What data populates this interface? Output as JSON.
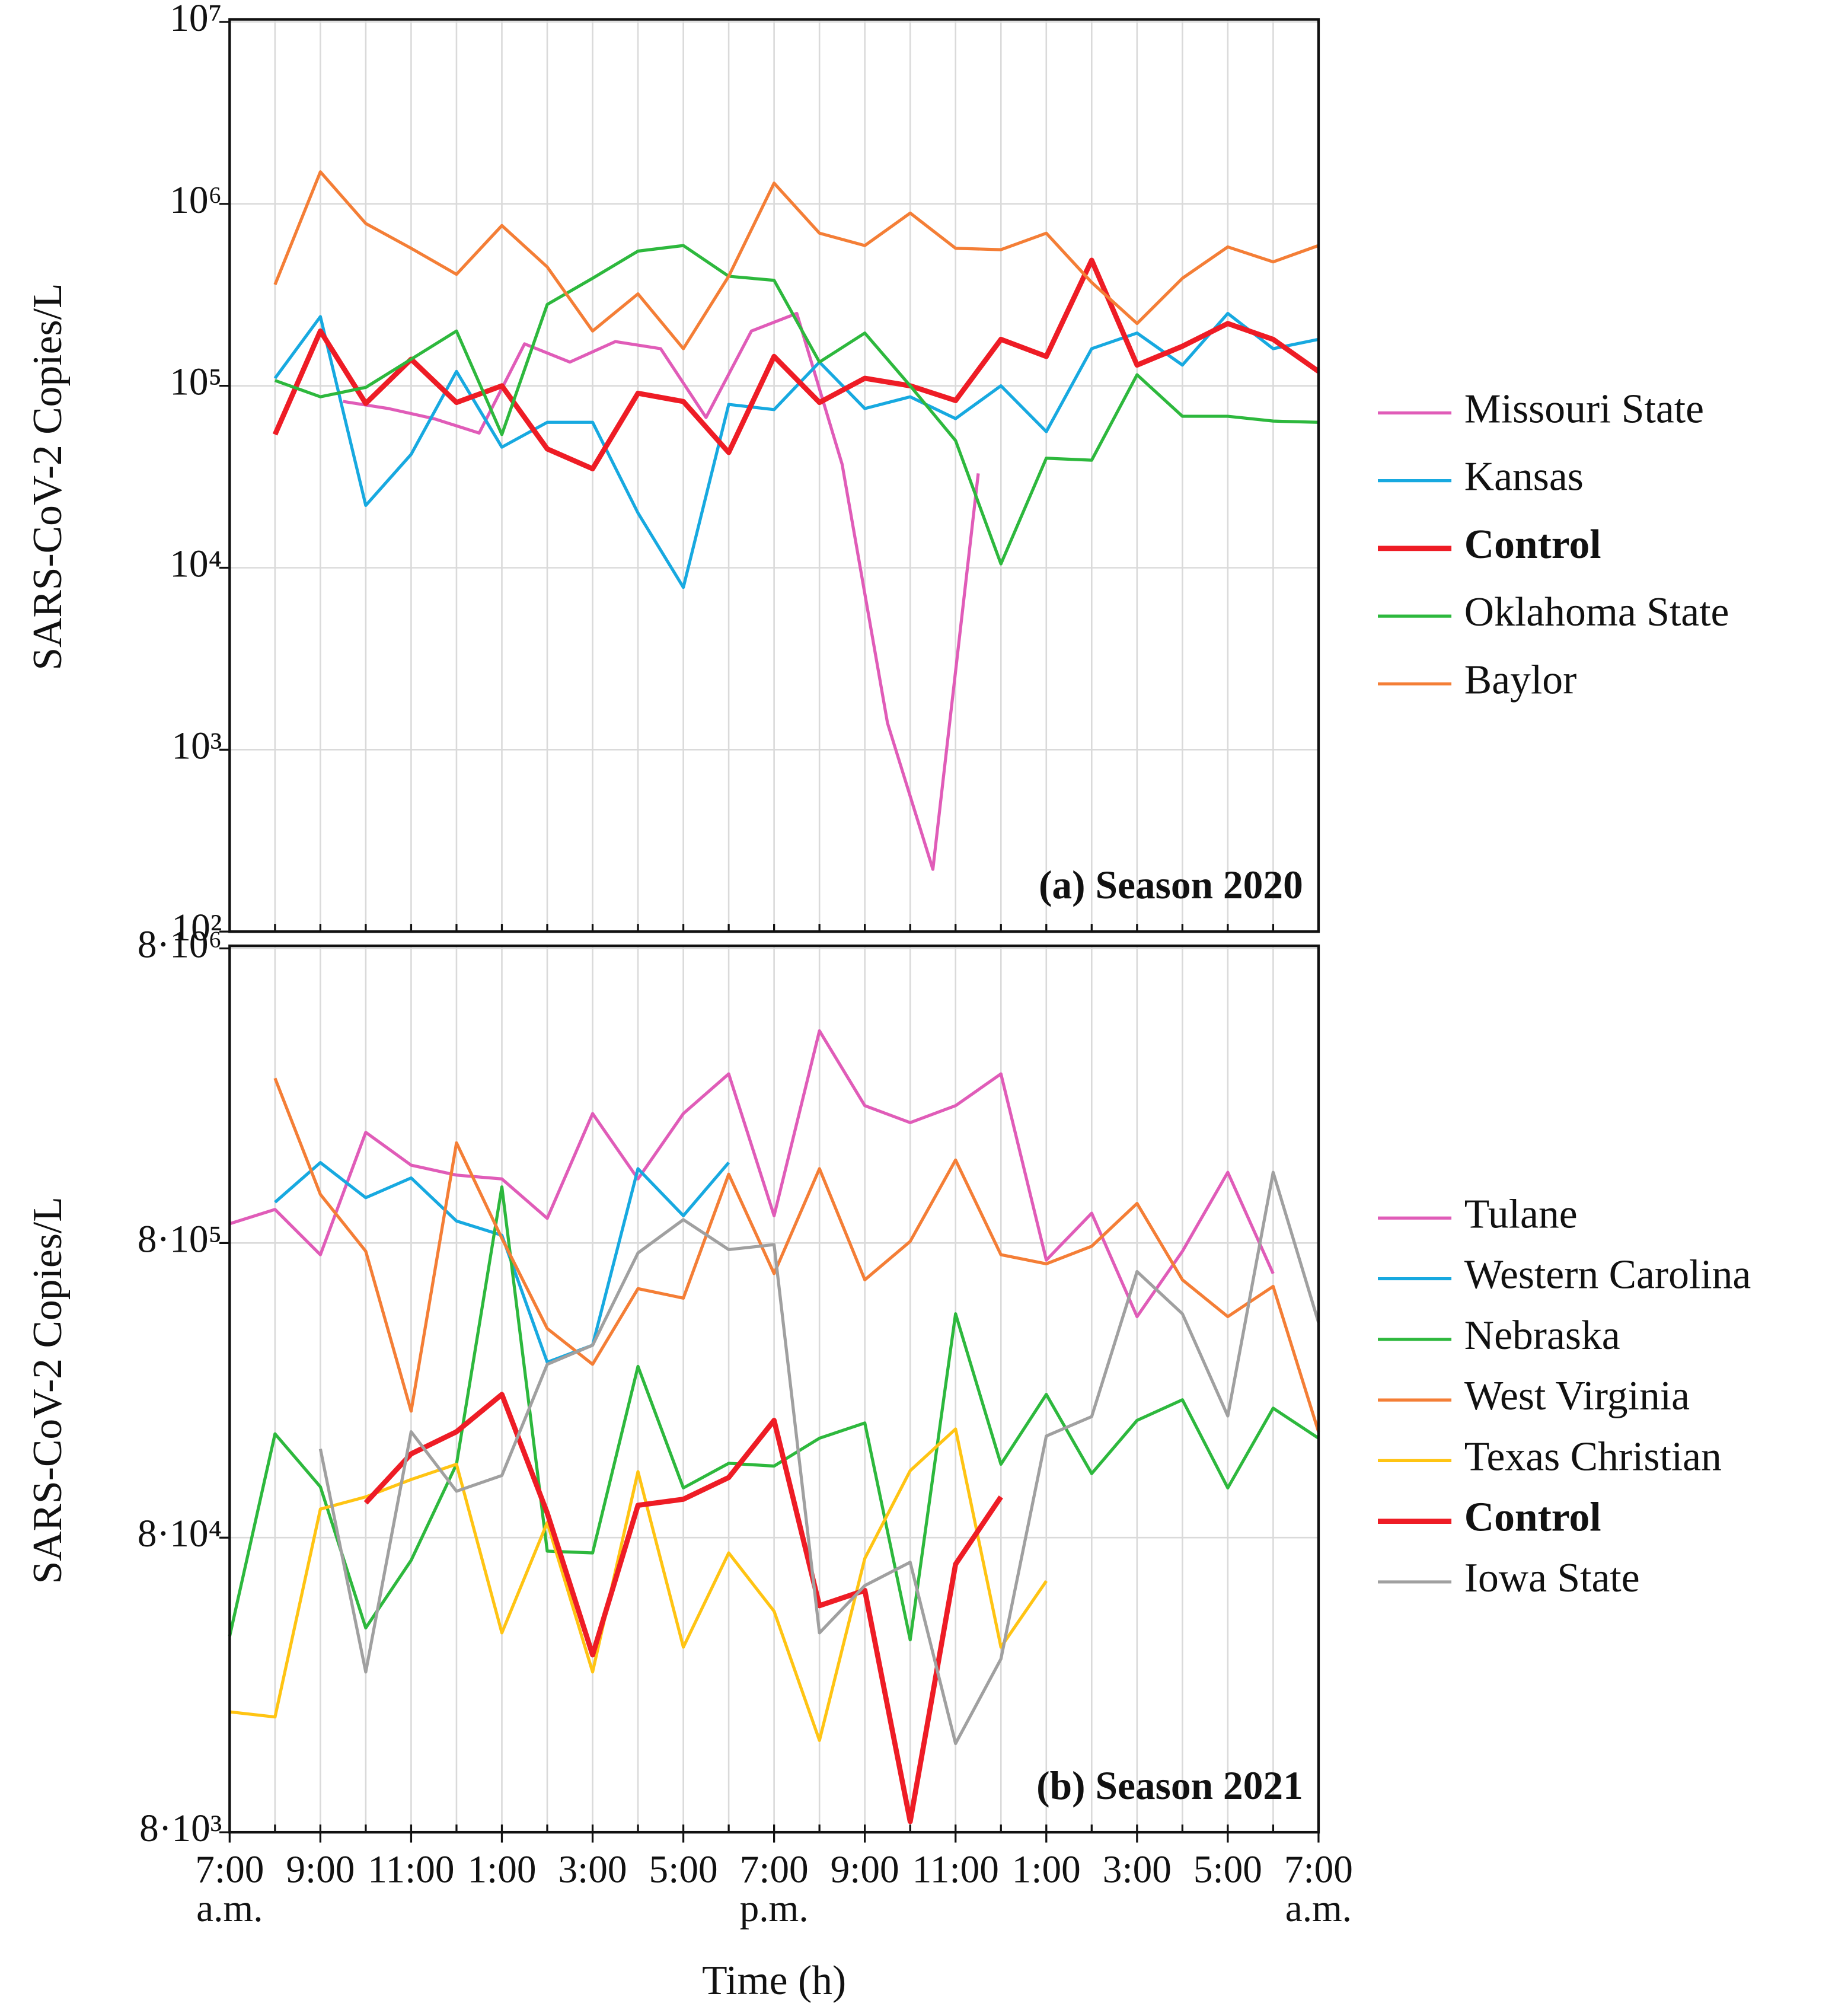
{
  "chart_data": [
    {
      "type": "line",
      "ylabel": "SARS-CoV-2 Copies/L",
      "annotation": "(a) Season 2020",
      "log_y": true,
      "grid": true,
      "x_grid_step": 1,
      "legend": "right",
      "xlim": [
        0,
        24
      ],
      "ylim": [
        100,
        10000000
      ],
      "yticks": [
        {
          "value": 100,
          "label": "10²"
        },
        {
          "value": 1000,
          "label": "10³"
        },
        {
          "value": 10000,
          "label": "10⁴"
        },
        {
          "value": 100000,
          "label": "10⁵"
        },
        {
          "value": 1000000,
          "label": "10⁶"
        },
        {
          "value": 10000000,
          "label": "10⁷"
        }
      ],
      "series": [
        {
          "name": "Missouri State",
          "color": "#e05cb8",
          "x": [
            2.5,
            3.5,
            4.5,
            5.5,
            6.5,
            7.5,
            8.5,
            9.5,
            10.5,
            11.5,
            12.5,
            13.5,
            14.5,
            15.5,
            16.5
          ],
          "values": [
            82000,
            75000,
            66000,
            55000,
            170000,
            135000,
            175000,
            160000,
            67000,
            200000,
            250000,
            37000,
            1400,
            220,
            33000
          ]
        },
        {
          "name": "Kansas",
          "color": "#17a9e0",
          "x": [
            1,
            2,
            3,
            4,
            5,
            6,
            7,
            8,
            9,
            10,
            11,
            12,
            13,
            14,
            15,
            16,
            17,
            18,
            19,
            20,
            21,
            22,
            23,
            24
          ],
          "values": [
            110000,
            240000,
            22000,
            42000,
            120000,
            46000,
            63000,
            63000,
            20000,
            7800,
            79000,
            74000,
            135000,
            75000,
            87000,
            66000,
            100000,
            56000,
            160000,
            195000,
            130000,
            250000,
            160000,
            180000
          ]
        },
        {
          "name": "Control",
          "color": "#ee1c25",
          "bold": true,
          "x": [
            1,
            2,
            3,
            4,
            5,
            6,
            7,
            8,
            9,
            10,
            11,
            12,
            13,
            14,
            15,
            16,
            17,
            18,
            19,
            20,
            21,
            22,
            23,
            24
          ],
          "values": [
            54000,
            200000,
            80000,
            140000,
            81000,
            100000,
            45000,
            35000,
            91000,
            82000,
            43000,
            145000,
            81000,
            110000,
            100000,
            83000,
            180000,
            145000,
            490000,
            130000,
            165000,
            220000,
            180000,
            120000
          ]
        },
        {
          "name": "Oklahoma State",
          "color": "#2db83d",
          "x": [
            1,
            2,
            3,
            4,
            5,
            6,
            7,
            8,
            9,
            10,
            11,
            12,
            13,
            14,
            15,
            16,
            17,
            18,
            19,
            20,
            21,
            22,
            23,
            24
          ],
          "values": [
            107000,
            87000,
            98000,
            140000,
            200000,
            54000,
            280000,
            390000,
            550000,
            590000,
            400000,
            380000,
            135000,
            195000,
            100000,
            50000,
            10500,
            40000,
            39000,
            115000,
            68000,
            68000,
            64000,
            63000
          ]
        },
        {
          "name": "Baylor",
          "color": "#f47e36",
          "x": [
            1,
            2,
            3,
            4,
            5,
            6,
            7,
            8,
            9,
            10,
            11,
            12,
            13,
            14,
            15,
            16,
            17,
            18,
            19,
            20,
            21,
            22,
            23,
            24
          ],
          "values": [
            360000,
            1500000,
            780000,
            570000,
            410000,
            760000,
            450000,
            200000,
            320000,
            160000,
            400000,
            1300000,
            690000,
            590000,
            890000,
            570000,
            560000,
            690000,
            370000,
            220000,
            390000,
            580000,
            480000,
            590000
          ]
        }
      ]
    },
    {
      "type": "line",
      "ylabel": "SARS-CoV-2 Copies/L",
      "annotation": "(b) Season 2021",
      "xlabel": "Time (h)",
      "log_y": true,
      "grid": true,
      "x_grid_step": 1,
      "legend": "right",
      "xlim": [
        0,
        24
      ],
      "ylim": [
        8000,
        8000000
      ],
      "yticks": [
        {
          "value": 8000,
          "label": "8·10³"
        },
        {
          "value": 80000,
          "label": "8·10⁴"
        },
        {
          "value": 800000,
          "label": "8·10⁵"
        },
        {
          "value": 8000000,
          "label": "8·10⁶"
        }
      ],
      "xticks": [
        {
          "value": 0,
          "label": "7:00",
          "period": "a.m."
        },
        {
          "value": 2,
          "label": "9:00"
        },
        {
          "value": 4,
          "label": "11:00"
        },
        {
          "value": 6,
          "label": "1:00"
        },
        {
          "value": 8,
          "label": "3:00"
        },
        {
          "value": 10,
          "label": "5:00"
        },
        {
          "value": 12,
          "label": "7:00",
          "period": "p.m."
        },
        {
          "value": 14,
          "label": "9:00"
        },
        {
          "value": 16,
          "label": "11:00"
        },
        {
          "value": 18,
          "label": "1:00"
        },
        {
          "value": 20,
          "label": "3:00"
        },
        {
          "value": 22,
          "label": "5:00"
        },
        {
          "value": 24,
          "label": "7:00",
          "period": "a.m."
        }
      ],
      "series": [
        {
          "name": "Tulane",
          "color": "#e05cb8",
          "x": [
            0,
            1,
            2,
            3,
            4,
            5,
            6,
            7,
            8,
            9,
            10,
            11,
            12,
            13,
            14,
            15,
            16,
            17,
            18,
            19,
            20,
            21,
            22,
            23
          ],
          "values": [
            930000,
            1040000,
            730000,
            1900000,
            1470000,
            1360000,
            1320000,
            970000,
            2200000,
            1320000,
            2200000,
            3000000,
            990000,
            4200000,
            2340000,
            2050000,
            2340000,
            3000000,
            700000,
            1010000,
            450000,
            750000,
            1390000,
            630000
          ]
        },
        {
          "name": "Western Carolina",
          "color": "#17a9e0",
          "x": [
            1,
            2,
            3,
            4,
            5,
            6,
            7,
            8,
            9,
            10,
            11
          ],
          "values": [
            1100000,
            1500000,
            1140000,
            1330000,
            950000,
            850000,
            315000,
            360000,
            1430000,
            990000,
            1500000
          ]
        },
        {
          "name": "Nebraska",
          "color": "#2db83d",
          "x": [
            0,
            1,
            2,
            3,
            4,
            5,
            6,
            7,
            8,
            9,
            10,
            11,
            12,
            13,
            14,
            15,
            16,
            17,
            18,
            19,
            20,
            21,
            22,
            23,
            24
          ],
          "values": [
            37000,
            180000,
            119000,
            39500,
            67000,
            142000,
            1240000,
            72000,
            71000,
            305000,
            118000,
            143000,
            140000,
            174000,
            196000,
            36000,
            460000,
            142000,
            245000,
            132000,
            200000,
            235000,
            118000,
            220000,
            174000
          ]
        },
        {
          "name": "West Virginia",
          "color": "#f47e36",
          "x": [
            1,
            2,
            3,
            4,
            5,
            6,
            7,
            8,
            9,
            10,
            11,
            12,
            13,
            14,
            15,
            16,
            17,
            18,
            19,
            20,
            21,
            22,
            23,
            24
          ],
          "values": [
            2900000,
            1170000,
            750000,
            215000,
            1750000,
            830000,
            410000,
            310000,
            560000,
            520000,
            1370000,
            630000,
            1430000,
            600000,
            810000,
            1530000,
            730000,
            680000,
            780000,
            1090000,
            600000,
            450000,
            570000,
            183000
          ]
        },
        {
          "name": "Texas Christian",
          "color": "#ffc413",
          "x": [
            0,
            1,
            2,
            3,
            4,
            5,
            6,
            7,
            8,
            9,
            10,
            11,
            12,
            13,
            14,
            15,
            16,
            17,
            18
          ],
          "values": [
            20500,
            19700,
            100000,
            110000,
            126000,
            142000,
            38000,
            90000,
            28000,
            134000,
            34000,
            71000,
            45000,
            16400,
            68000,
            135000,
            187000,
            34000,
            57000
          ]
        },
        {
          "name": "Control",
          "color": "#ee1c25",
          "bold": true,
          "x": [
            3,
            4,
            5,
            6,
            7,
            8,
            9,
            10,
            11,
            12,
            13,
            14,
            15,
            16,
            17
          ],
          "values": [
            105000,
            154000,
            183000,
            245000,
            97000,
            32000,
            103000,
            108000,
            128000,
            200000,
            47000,
            53000,
            8700,
            65000,
            110000
          ]
        },
        {
          "name": "Iowa State",
          "color": "#a0a0a0",
          "x": [
            2,
            3,
            4,
            5,
            6,
            7,
            8,
            9,
            10,
            11,
            12,
            13,
            14,
            15,
            16,
            17,
            18,
            19,
            20,
            21,
            22,
            23,
            24
          ],
          "values": [
            160000,
            28000,
            183000,
            115000,
            130000,
            310000,
            360000,
            740000,
            960000,
            760000,
            790000,
            38000,
            55000,
            66000,
            16000,
            31000,
            177000,
            206000,
            640000,
            460000,
            207000,
            1390000,
            430000
          ]
        }
      ]
    }
  ]
}
